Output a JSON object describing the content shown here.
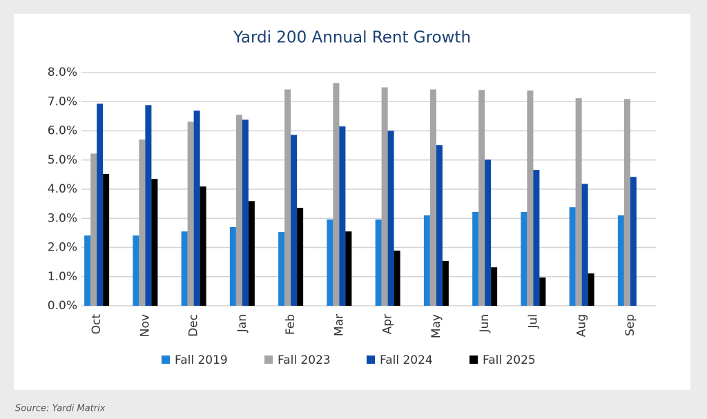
{
  "chart_data": {
    "type": "bar",
    "title": "Yardi 200 Annual Rent Growth",
    "source": "Source: Yardi Matrix",
    "categories": [
      "Oct",
      "Nov",
      "Dec",
      "Jan",
      "Feb",
      "Mar",
      "Apr",
      "May",
      "Jun",
      "Jul",
      "Aug",
      "Sep"
    ],
    "series": [
      {
        "name": "Fall 2019",
        "color": "#1f82d6",
        "values": [
          2.41,
          2.41,
          2.55,
          2.7,
          2.53,
          2.96,
          2.96,
          3.1,
          3.22,
          3.22,
          3.38,
          3.1
        ]
      },
      {
        "name": "Fall 2023",
        "color": "#a5a5a5",
        "values": [
          5.22,
          5.7,
          6.31,
          6.55,
          7.42,
          7.64,
          7.49,
          7.42,
          7.4,
          7.38,
          7.12,
          7.09
        ]
      },
      {
        "name": "Fall 2024",
        "color": "#0b4aa8",
        "values": [
          6.93,
          6.88,
          6.69,
          6.38,
          5.86,
          6.15,
          6.0,
          5.51,
          5.01,
          4.66,
          4.18,
          4.42
        ]
      },
      {
        "name": "Fall 2025",
        "color": "#000000",
        "values": [
          4.52,
          4.35,
          4.09,
          3.59,
          3.36,
          2.55,
          1.89,
          1.54,
          1.32,
          0.97,
          1.11,
          null
        ]
      }
    ],
    "ylim": [
      0,
      8
    ],
    "yticks": [
      {
        "value": 0,
        "label": "0.0%"
      },
      {
        "value": 1,
        "label": "1.0%"
      },
      {
        "value": 2,
        "label": "2.0%"
      },
      {
        "value": 3,
        "label": "3.0%"
      },
      {
        "value": 4,
        "label": "4.0%"
      },
      {
        "value": 5,
        "label": "5.0%"
      },
      {
        "value": 6,
        "label": "6.0%"
      },
      {
        "value": 7,
        "label": "7.0%"
      },
      {
        "value": 8,
        "label": "8.0%"
      }
    ],
    "grid": true,
    "legend": "bottom"
  }
}
